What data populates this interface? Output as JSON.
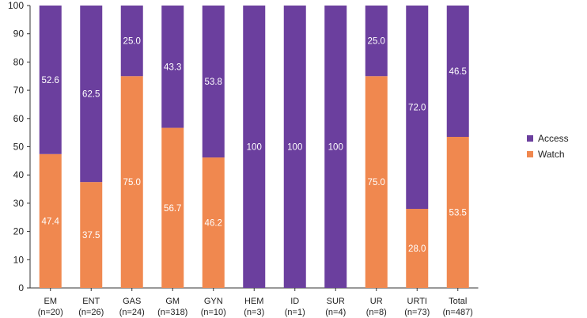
{
  "chart_data": {
    "type": "bar",
    "stacked": true,
    "title": "",
    "xlabel": "",
    "ylabel": "",
    "ylim": [
      0,
      100
    ],
    "yticks": [
      0,
      10,
      20,
      30,
      40,
      50,
      60,
      70,
      80,
      90,
      100
    ],
    "grid": false,
    "legend_position": "right",
    "categories": [
      {
        "name": "EM",
        "n": "(n=20)"
      },
      {
        "name": "ENT",
        "n": "(n=26)"
      },
      {
        "name": "GAS",
        "n": "(n=24)"
      },
      {
        "name": "GM",
        "n": "(n=318)"
      },
      {
        "name": "GYN",
        "n": "(n=10)"
      },
      {
        "name": "HEM",
        "n": "(n=3)"
      },
      {
        "name": "ID",
        "n": "(n=1)"
      },
      {
        "name": "SUR",
        "n": "(n=4)"
      },
      {
        "name": "UR",
        "n": "(n=8)"
      },
      {
        "name": "URTI",
        "n": "(n=73)"
      },
      {
        "name": "Total",
        "n": "(n=487)"
      }
    ],
    "series": [
      {
        "name": "Watch",
        "color": "#F0884F",
        "values": [
          47.4,
          37.5,
          75.0,
          56.7,
          46.2,
          0,
          0,
          0,
          75.0,
          28.0,
          53.5
        ],
        "labels": [
          "47.4",
          "37.5",
          "75.0",
          "56.7",
          "46.2",
          "",
          "",
          "",
          "75.0",
          "28.0",
          "53.5"
        ]
      },
      {
        "name": "Access",
        "color": "#6B3F9E",
        "values": [
          52.6,
          62.5,
          25.0,
          43.3,
          53.8,
          100,
          100,
          100,
          25.0,
          72.0,
          46.5
        ],
        "labels": [
          "52.6",
          "62.5",
          "25.0",
          "43.3",
          "53.8",
          "100",
          "100",
          "100",
          "25.0",
          "72.0",
          "46.5"
        ]
      }
    ],
    "legend": [
      "Access",
      "Watch"
    ]
  }
}
